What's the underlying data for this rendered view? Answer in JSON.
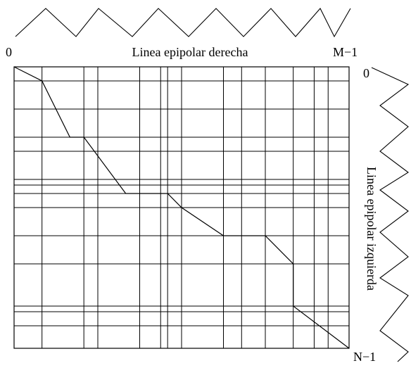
{
  "top_axis": {
    "start_label": "0",
    "title": "Linea epipolar derecha",
    "end_label": "M−1"
  },
  "right_axis": {
    "start_label": "0",
    "title": "Linea epipolar izquierda",
    "end_label": "N−1"
  },
  "grid": {
    "column_edges": [
      0,
      2,
      5,
      6,
      9,
      10.5,
      11,
      12,
      15,
      16.3,
      18,
      20,
      21.5,
      22.5,
      24
    ],
    "row_edges": [
      0,
      1,
      3,
      5,
      6,
      8,
      8.4,
      9,
      10,
      12,
      14,
      17,
      17.4,
      18.4,
      20
    ],
    "matching_path": [
      [
        0,
        0
      ],
      [
        2,
        1
      ],
      [
        4,
        5
      ],
      [
        5,
        5
      ],
      [
        8,
        9
      ],
      [
        11,
        9
      ],
      [
        12,
        10
      ],
      [
        15,
        12
      ],
      [
        18,
        12
      ],
      [
        20,
        14
      ],
      [
        20,
        17
      ],
      [
        24,
        20
      ]
    ]
  }
}
